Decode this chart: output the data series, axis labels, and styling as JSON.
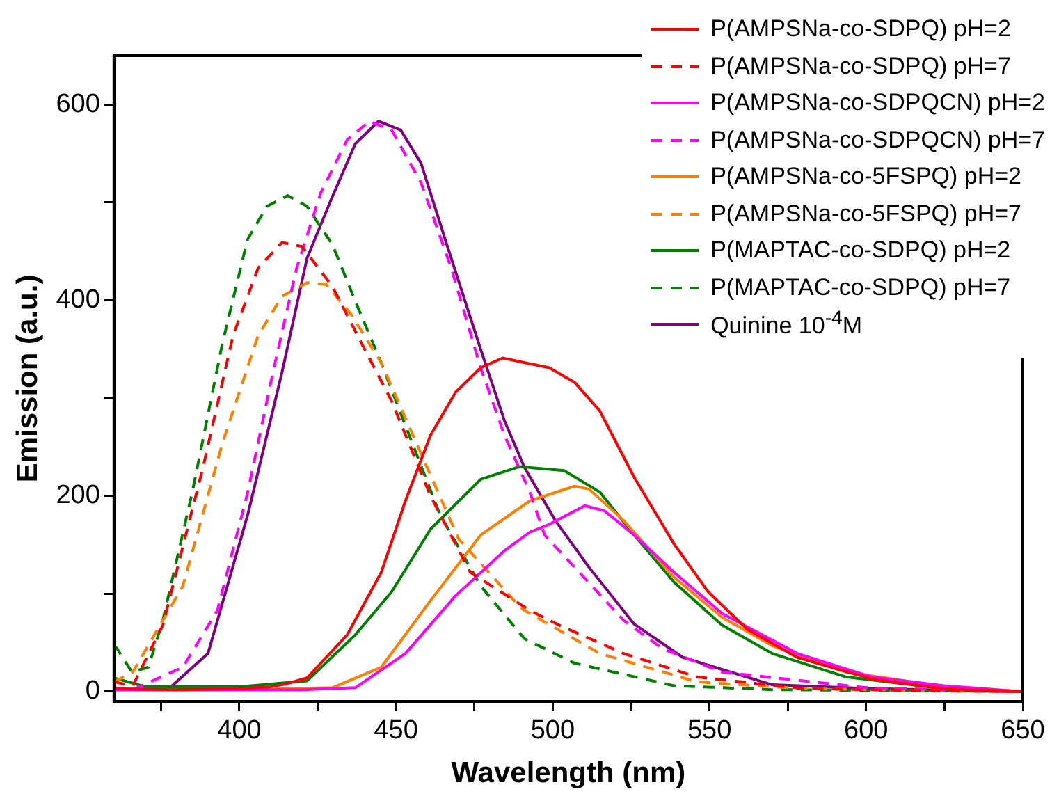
{
  "chart_data": {
    "type": "line",
    "xlabel": "Wavelength (nm)",
    "ylabel": "Emission (a.u.)",
    "xlim": [
      360,
      650
    ],
    "ylim": [
      -10,
      650
    ],
    "xticks": [
      {
        "value": 375,
        "label": null
      },
      400,
      {
        "value": 425,
        "label": null
      },
      450,
      {
        "value": 475,
        "label": null
      },
      500,
      {
        "value": 525,
        "label": null
      },
      550,
      {
        "value": 575,
        "label": null
      },
      600,
      {
        "value": 625,
        "label": null
      },
      650
    ],
    "yticks": [
      0,
      {
        "value": 100,
        "label": null
      },
      200,
      {
        "value": 300,
        "label": null
      },
      400,
      {
        "value": 500,
        "label": null
      },
      600
    ],
    "grid": false,
    "legend": "top right",
    "marker": "none",
    "series": [
      {
        "name": "P(AMPSNa-co-SDPQ) pH=2",
        "color": "#ff0000",
        "line_style": "solid",
        "x": [
          360,
          380,
          400,
          410,
          415,
          421.6,
          434.4,
          445.3,
          453,
          461,
          469,
          477,
          484,
          498.9,
          507,
          515,
          526,
          538.7,
          549.6,
          562,
          578,
          601.7,
          625,
          650
        ],
        "values": [
          3,
          2,
          3,
          5,
          8,
          14,
          58,
          122,
          195,
          262,
          306,
          331,
          341,
          331,
          316,
          287,
          219,
          151,
          102,
          64,
          35,
          13,
          3,
          0
        ]
      },
      {
        "name": "P(AMPSNa-co-SDPQ) pH=7",
        "color": "#ff0000",
        "line_style": "dashed",
        "x": [
          360,
          366,
          375.6,
          388.4,
          398,
          406,
          413.6,
          420,
          429.7,
          439,
          448.6,
          461,
          473.7,
          492.7,
          502,
          522.6,
          546,
          580,
          620,
          650
        ],
        "values": [
          10,
          6,
          68,
          229,
          364,
          433,
          459,
          455,
          414,
          356,
          297,
          200,
          122,
          83,
          68,
          39,
          15,
          3,
          1,
          0
        ]
      },
      {
        "name": "P(AMPSNa-co-SDPQCN) pH=2",
        "color": "#ff00ff",
        "line_style": "solid",
        "x": [
          360,
          400,
          420,
          437,
          453,
          469,
          484.6,
          492.7,
          498.9,
          510.2,
          516.4,
          526,
          538.7,
          554,
          578,
          601.7,
          625,
          650
        ],
        "values": [
          2,
          2,
          2,
          4,
          39,
          98,
          144,
          163,
          171,
          190,
          185,
          160,
          122,
          80,
          39,
          15,
          6,
          0
        ]
      },
      {
        "name": "P(AMPSNa-co-SDPQCN) pH=7",
        "color": "#ff00ff",
        "line_style": "dashed",
        "x": [
          360,
          366,
          382,
          393,
          402.7,
          410.7,
          418.3,
          426,
          434.4,
          441.5,
          448.6,
          458,
          467.6,
          477,
          484.6,
          492.7,
          497.4,
          507,
          522.6,
          535,
          554,
          600,
          650
        ],
        "values": [
          4,
          2,
          25,
          83,
          204,
          326,
          433,
          510,
          564,
          583,
          574,
          520,
          433,
          331,
          262,
          204,
          160,
          127,
          73,
          44,
          20,
          4,
          0
        ]
      },
      {
        "name": "P(AMPSNa-co-5FSPQ) pH=2",
        "color": "#ff8000",
        "line_style": "solid",
        "x": [
          360,
          400,
          429.7,
          445.3,
          461,
          477,
          492.7,
          497.4,
          507,
          511.6,
          522.6,
          538.7,
          554,
          570,
          593.6,
          625,
          650
        ],
        "values": [
          2,
          2,
          4,
          25,
          93,
          160,
          195,
          200,
          210,
          207,
          175,
          117,
          76,
          47,
          20,
          5,
          0
        ]
      },
      {
        "name": "P(AMPSNa-co-5FSPQ) pH=7",
        "color": "#ff8000",
        "line_style": "dashed",
        "x": [
          360,
          366,
          382,
          394.6,
          406,
          413.6,
          421.6,
          427.8,
          435.8,
          445.3,
          458,
          470,
          489.4,
          491,
          515,
          546,
          580,
          650
        ],
        "values": [
          10,
          20,
          108,
          254,
          364,
          404,
          418,
          416,
          385,
          336,
          243,
          156,
          87,
          83,
          39,
          10,
          3,
          0
        ]
      },
      {
        "name": "P(MAPTAC-co-SDPQ) pH=2",
        "color": "#008000",
        "line_style": "solid",
        "x": [
          360,
          370,
          400,
          421.6,
          437,
          448.6,
          461,
          477,
          489.4,
          503.6,
          515,
          526,
          538.7,
          554,
          570,
          593.6,
          625,
          650
        ],
        "values": [
          14,
          5,
          5,
          11,
          58,
          102,
          166,
          217,
          230,
          226,
          204,
          160,
          112,
          68,
          39,
          15,
          3,
          0
        ]
      },
      {
        "name": "P(MAPTAC-co-SDPQ) pH=7",
        "color": "#008000",
        "line_style": "dashed",
        "x": [
          360,
          361,
          365.7,
          371,
          375.6,
          385,
          394.6,
          402.6,
          408.8,
          415.4,
          421.6,
          429.7,
          437,
          445.3,
          453,
          464,
          477,
          491,
          507,
          538.7,
          570,
          650
        ],
        "values": [
          47,
          44,
          20,
          25,
          73,
          204,
          356,
          462,
          496,
          507,
          496,
          457,
          399,
          336,
          272,
          181,
          108,
          54,
          29,
          6,
          2,
          0
        ]
      },
      {
        "name": "Quinine 10$^{-4}$M",
        "color": "#800080",
        "line_style": "solid",
        "x": [
          360,
          377.5,
          390,
          402.7,
          413.6,
          421.6,
          429.7,
          437,
          444.4,
          451.5,
          458,
          465.7,
          477,
          484.6,
          491,
          500.8,
          511.6,
          526,
          541.5,
          570,
          601.7,
          650
        ],
        "values": [
          2,
          3,
          39,
          181,
          326,
          443,
          506,
          560,
          583,
          574,
          540,
          462,
          350,
          277,
          229,
          175,
          127,
          69,
          35,
          7,
          3,
          0
        ]
      }
    ]
  }
}
